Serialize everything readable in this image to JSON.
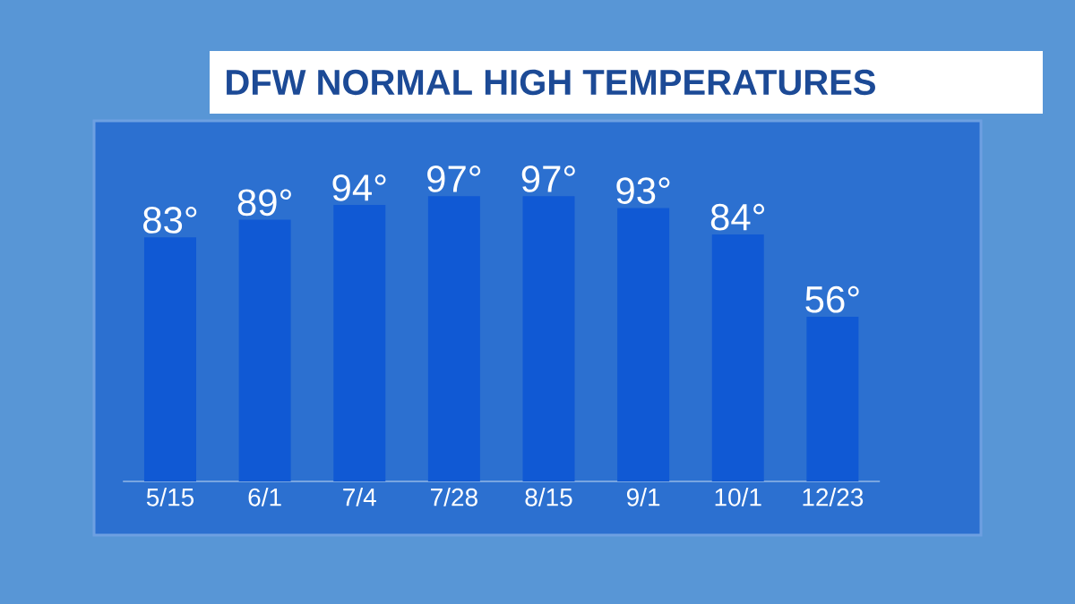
{
  "chart_data": {
    "type": "bar",
    "title": "DFW NORMAL HIGH TEMPERATURES",
    "categories": [
      "5/15",
      "6/1",
      "7/4",
      "7/28",
      "8/15",
      "9/1",
      "10/1",
      "12/23"
    ],
    "values": [
      83,
      89,
      94,
      97,
      97,
      93,
      84,
      56
    ],
    "value_labels": [
      "83°",
      "89°",
      "94°",
      "97°",
      "97°",
      "93°",
      "84°",
      "56°"
    ],
    "color": "#1059d4",
    "tick_labels": "x"
  }
}
